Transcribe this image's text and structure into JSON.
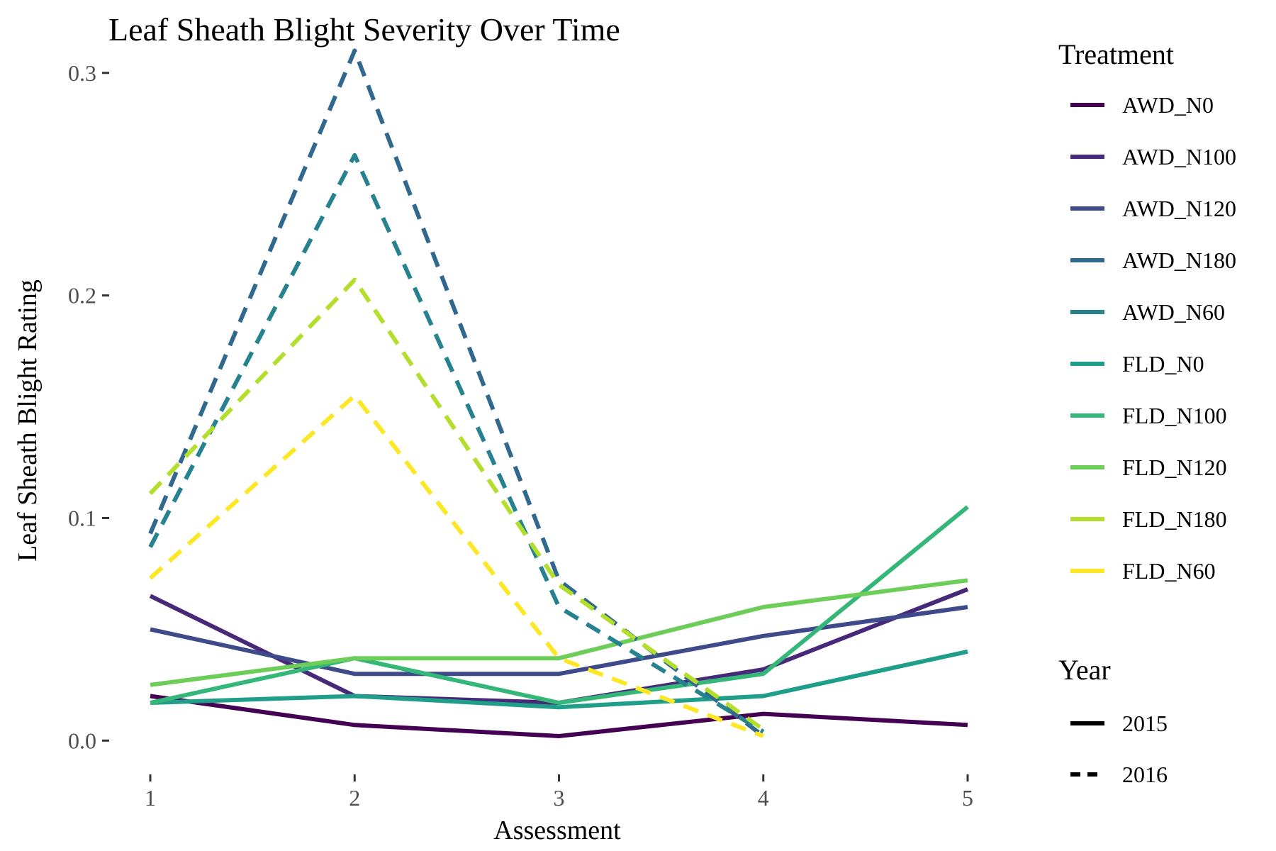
{
  "chart_data": {
    "type": "line",
    "title": "Leaf Sheath Blight Severity Over Time",
    "xlabel": "Assessment",
    "ylabel": "Leaf Sheath Blight Rating",
    "x": [
      1,
      2,
      3,
      4,
      5
    ],
    "x_ticks": [
      "1",
      "2",
      "3",
      "4",
      "5"
    ],
    "y_ticks": [
      "0.0",
      "0.1",
      "0.2",
      "0.3"
    ],
    "ylim": [
      -0.005,
      0.32
    ],
    "grid": false,
    "legend_placement": "right",
    "legend_treatment_title": "Treatment",
    "legend_year_title": "Year",
    "treatments": [
      {
        "name": "AWD_N0",
        "color": "#440154"
      },
      {
        "name": "AWD_N100",
        "color": "#482878"
      },
      {
        "name": "AWD_N120",
        "color": "#3E4A89"
      },
      {
        "name": "AWD_N180",
        "color": "#31688E"
      },
      {
        "name": "AWD_N60",
        "color": "#26828E"
      },
      {
        "name": "FLD_N0",
        "color": "#1F9E89"
      },
      {
        "name": "FLD_N100",
        "color": "#35B779"
      },
      {
        "name": "FLD_N120",
        "color": "#6DCD59"
      },
      {
        "name": "FLD_N180",
        "color": "#B4DE2C"
      },
      {
        "name": "FLD_N60",
        "color": "#FDE725"
      }
    ],
    "years": [
      {
        "name": "2015",
        "dash": "solid"
      },
      {
        "name": "2016",
        "dash": "dashed"
      }
    ],
    "series": [
      {
        "treatment": "AWD_N0",
        "year": "2015",
        "x": [
          1,
          2,
          3,
          4,
          5
        ],
        "values": [
          0.02,
          0.007,
          0.002,
          0.012,
          0.007
        ]
      },
      {
        "treatment": "AWD_N100",
        "year": "2015",
        "x": [
          1,
          2,
          3,
          4,
          5
        ],
        "values": [
          0.065,
          0.02,
          0.017,
          0.032,
          0.068
        ]
      },
      {
        "treatment": "AWD_N120",
        "year": "2015",
        "x": [
          1,
          2,
          3,
          4,
          5
        ],
        "values": [
          0.05,
          0.03,
          0.03,
          0.047,
          0.06
        ]
      },
      {
        "treatment": "FLD_N0",
        "year": "2015",
        "x": [
          1,
          2,
          3,
          4,
          5
        ],
        "values": [
          0.017,
          0.02,
          0.015,
          0.02,
          0.04
        ]
      },
      {
        "treatment": "FLD_N100",
        "year": "2015",
        "x": [
          1,
          2,
          3,
          4,
          5
        ],
        "values": [
          0.017,
          0.037,
          0.017,
          0.03,
          0.105
        ]
      },
      {
        "treatment": "FLD_N120",
        "year": "2015",
        "x": [
          1,
          2,
          3,
          4,
          5
        ],
        "values": [
          0.025,
          0.037,
          0.037,
          0.06,
          0.072
        ]
      },
      {
        "treatment": "AWD_N180",
        "year": "2016",
        "x": [
          1,
          2,
          3,
          4
        ],
        "values": [
          0.093,
          0.31,
          0.072,
          0.002
        ]
      },
      {
        "treatment": "AWD_N60",
        "year": "2016",
        "x": [
          1,
          2,
          3,
          4
        ],
        "values": [
          0.087,
          0.263,
          0.06,
          0.004
        ]
      },
      {
        "treatment": "FLD_N180",
        "year": "2016",
        "x": [
          1,
          2,
          3,
          4
        ],
        "values": [
          0.111,
          0.207,
          0.07,
          0.005
        ]
      },
      {
        "treatment": "FLD_N60",
        "year": "2016",
        "x": [
          1,
          2,
          3,
          4
        ],
        "values": [
          0.073,
          0.155,
          0.037,
          0.002
        ]
      }
    ]
  }
}
